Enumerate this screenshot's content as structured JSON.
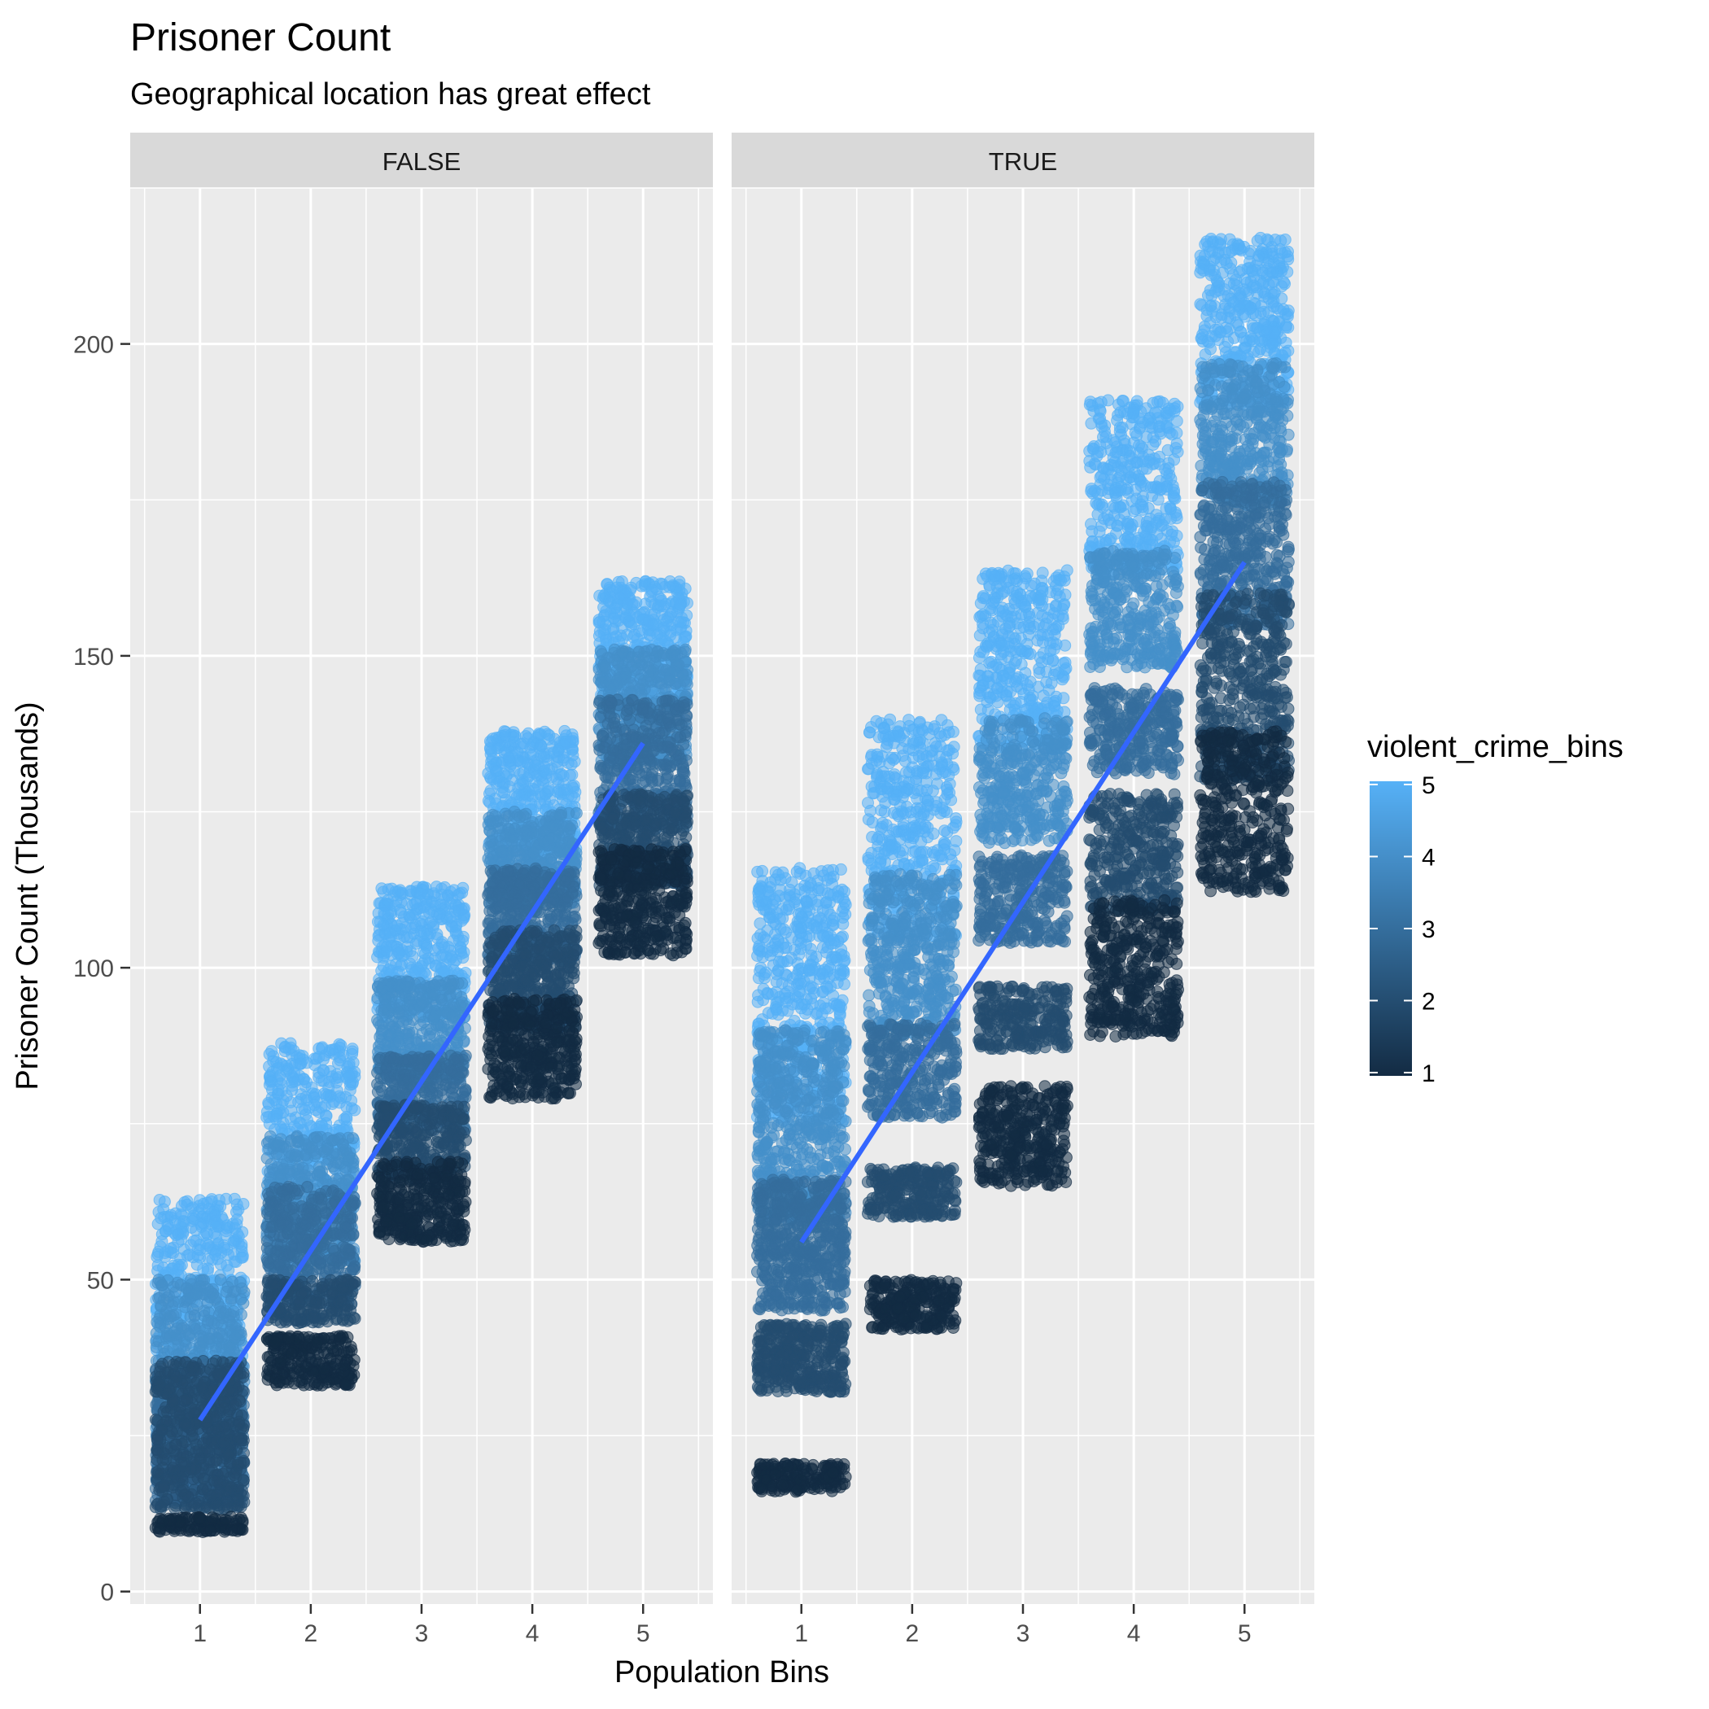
{
  "chart_data": {
    "type": "scatter",
    "title": "Prisoner Count",
    "subtitle": "Geographical location has great effect",
    "xlabel": "Population Bins",
    "ylabel": "Prisoner Count  (Thousands)",
    "x_ticks": [
      "1",
      "2",
      "3",
      "4",
      "5"
    ],
    "y_ticks": [
      0,
      50,
      100,
      150,
      200
    ],
    "xlim": [
      0.37,
      5.63
    ],
    "ylim": [
      -2,
      225
    ],
    "grid": true,
    "legend_position": "right",
    "legend": {
      "title": "violent_crime_bins",
      "min": 1,
      "max": 5,
      "ticks": [
        1,
        2,
        3,
        4,
        5
      ],
      "low_color": "#132B43",
      "high_color": "#56B1F7"
    },
    "trend_color": "#3366FF",
    "facets": [
      {
        "label": "FALSE",
        "trend": {
          "x": [
            1,
            5
          ],
          "y": [
            27.5,
            136
          ]
        },
        "clusters": [
          {
            "x": 1,
            "crime_bin": 1,
            "y_min": 9.5,
            "y_max": 12,
            "count": 120
          },
          {
            "x": 1,
            "crime_bin": 2,
            "y_min": 13,
            "y_max": 37,
            "count": 550
          },
          {
            "x": 1,
            "crime_bin": 3,
            "y_min": 14,
            "y_max": 36,
            "count": 550
          },
          {
            "x": 1,
            "crime_bin": 4,
            "y_min": 18,
            "y_max": 50,
            "count": 550
          },
          {
            "x": 1,
            "crime_bin": 5,
            "y_min": 37,
            "y_max": 63,
            "count": 420
          },
          {
            "x": 2,
            "crime_bin": 1,
            "y_min": 33,
            "y_max": 41,
            "count": 250
          },
          {
            "x": 2,
            "crime_bin": 2,
            "y_min": 43,
            "y_max": 50,
            "count": 200
          },
          {
            "x": 2,
            "crime_bin": 3,
            "y_min": 46,
            "y_max": 65,
            "count": 400
          },
          {
            "x": 2,
            "crime_bin": 4,
            "y_min": 52,
            "y_max": 73,
            "count": 400
          },
          {
            "x": 2,
            "crime_bin": 5,
            "y_min": 63,
            "y_max": 88,
            "count": 400
          },
          {
            "x": 3,
            "crime_bin": 1,
            "y_min": 56,
            "y_max": 69,
            "count": 350
          },
          {
            "x": 3,
            "crime_bin": 2,
            "y_min": 66,
            "y_max": 78,
            "count": 300
          },
          {
            "x": 3,
            "crime_bin": 3,
            "y_min": 74,
            "y_max": 86,
            "count": 300
          },
          {
            "x": 3,
            "crime_bin": 4,
            "y_min": 82,
            "y_max": 98,
            "count": 400
          },
          {
            "x": 3,
            "crime_bin": 5,
            "y_min": 92,
            "y_max": 113,
            "count": 400
          },
          {
            "x": 4,
            "crime_bin": 1,
            "y_min": 79,
            "y_max": 95,
            "count": 400
          },
          {
            "x": 4,
            "crime_bin": 2,
            "y_min": 90,
            "y_max": 106,
            "count": 400
          },
          {
            "x": 4,
            "crime_bin": 3,
            "y_min": 101,
            "y_max": 116,
            "count": 400
          },
          {
            "x": 4,
            "crime_bin": 4,
            "y_min": 110,
            "y_max": 125,
            "count": 400
          },
          {
            "x": 4,
            "crime_bin": 5,
            "y_min": 118,
            "y_max": 138,
            "count": 400
          },
          {
            "x": 5,
            "crime_bin": 1,
            "y_min": 102,
            "y_max": 119,
            "count": 400
          },
          {
            "x": 5,
            "crime_bin": 2,
            "y_min": 113,
            "y_max": 128,
            "count": 400
          },
          {
            "x": 5,
            "crime_bin": 3,
            "y_min": 122,
            "y_max": 143,
            "count": 400
          },
          {
            "x": 5,
            "crime_bin": 4,
            "y_min": 133,
            "y_max": 151,
            "count": 400
          },
          {
            "x": 5,
            "crime_bin": 5,
            "y_min": 143,
            "y_max": 162,
            "count": 400
          }
        ]
      },
      {
        "label": "TRUE",
        "trend": {
          "x": [
            1,
            5
          ],
          "y": [
            56,
            165
          ]
        },
        "clusters": [
          {
            "x": 1,
            "crime_bin": 1,
            "y_min": 16,
            "y_max": 20.5,
            "count": 180
          },
          {
            "x": 1,
            "crime_bin": 2,
            "y_min": 32,
            "y_max": 43,
            "count": 350
          },
          {
            "x": 1,
            "crime_bin": 3,
            "y_min": 45,
            "y_max": 66,
            "count": 550
          },
          {
            "x": 1,
            "crime_bin": 4,
            "y_min": 59,
            "y_max": 90,
            "count": 550
          },
          {
            "x": 1,
            "crime_bin": 5,
            "y_min": 75,
            "y_max": 116,
            "count": 550
          },
          {
            "x": 2,
            "crime_bin": 1,
            "y_min": 42,
            "y_max": 50,
            "count": 250
          },
          {
            "x": 2,
            "crime_bin": 2,
            "y_min": 60,
            "y_max": 68,
            "count": 250
          },
          {
            "x": 2,
            "crime_bin": 3,
            "y_min": 76,
            "y_max": 91,
            "count": 300
          },
          {
            "x": 2,
            "crime_bin": 4,
            "y_min": 89,
            "y_max": 115,
            "count": 450
          },
          {
            "x": 2,
            "crime_bin": 5,
            "y_min": 105,
            "y_max": 140,
            "count": 450
          },
          {
            "x": 3,
            "crime_bin": 1,
            "y_min": 65,
            "y_max": 81,
            "count": 350
          },
          {
            "x": 3,
            "crime_bin": 2,
            "y_min": 87,
            "y_max": 97,
            "count": 250
          },
          {
            "x": 3,
            "crime_bin": 3,
            "y_min": 104,
            "y_max": 118,
            "count": 300
          },
          {
            "x": 3,
            "crime_bin": 4,
            "y_min": 120,
            "y_max": 140,
            "count": 350
          },
          {
            "x": 3,
            "crime_bin": 5,
            "y_min": 135,
            "y_max": 164,
            "count": 400
          },
          {
            "x": 4,
            "crime_bin": 1,
            "y_min": 89,
            "y_max": 111,
            "count": 400
          },
          {
            "x": 4,
            "crime_bin": 2,
            "y_min": 109,
            "y_max": 128,
            "count": 350
          },
          {
            "x": 4,
            "crime_bin": 3,
            "y_min": 131,
            "y_max": 145,
            "count": 300
          },
          {
            "x": 4,
            "crime_bin": 4,
            "y_min": 148,
            "y_max": 167,
            "count": 350
          },
          {
            "x": 4,
            "crime_bin": 5,
            "y_min": 163,
            "y_max": 191,
            "count": 400
          },
          {
            "x": 5,
            "crime_bin": 1,
            "y_min": 112,
            "y_max": 138,
            "count": 400
          },
          {
            "x": 5,
            "crime_bin": 2,
            "y_min": 130,
            "y_max": 160,
            "count": 450
          },
          {
            "x": 5,
            "crime_bin": 3,
            "y_min": 155,
            "y_max": 178,
            "count": 400
          },
          {
            "x": 5,
            "crime_bin": 4,
            "y_min": 174,
            "y_max": 197,
            "count": 400
          },
          {
            "x": 5,
            "crime_bin": 5,
            "y_min": 190,
            "y_max": 217,
            "count": 450
          }
        ]
      }
    ]
  }
}
